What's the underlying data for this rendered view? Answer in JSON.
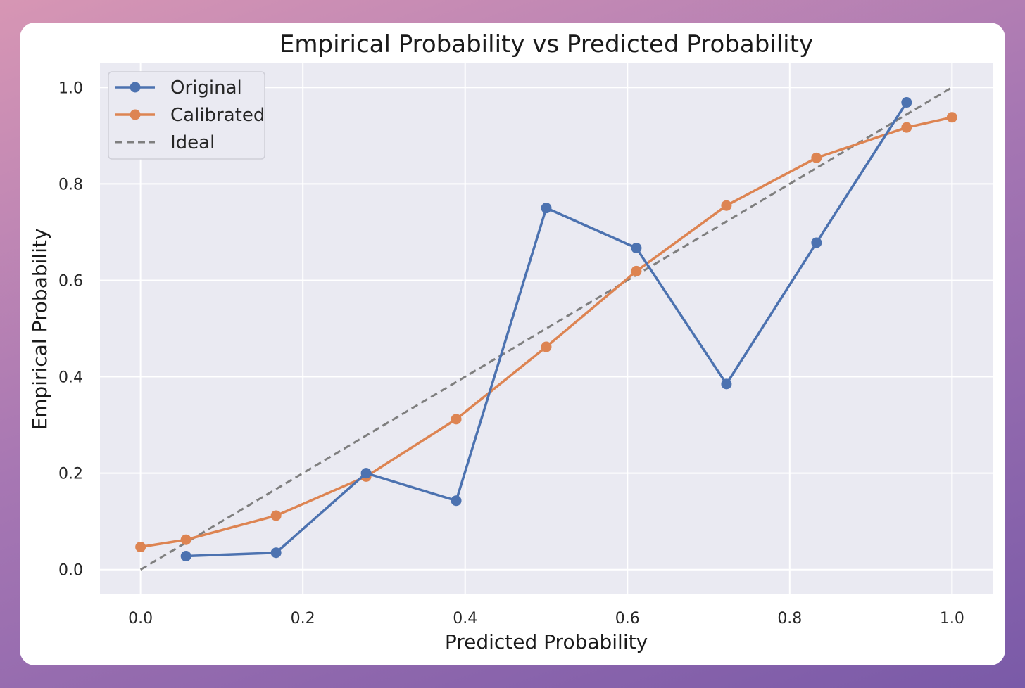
{
  "chart_data": {
    "type": "line",
    "title": "Empirical Probability vs Predicted Probability",
    "xlabel": "Predicted Probability",
    "ylabel": "Empirical Probability",
    "xlim": [
      -0.05,
      1.05
    ],
    "ylim": [
      -0.05,
      1.05
    ],
    "xticks": [
      0.0,
      0.2,
      0.4,
      0.6,
      0.8,
      1.0
    ],
    "yticks": [
      0.0,
      0.2,
      0.4,
      0.6,
      0.8,
      1.0
    ],
    "xtick_labels": [
      "0.0",
      "0.2",
      "0.4",
      "0.6",
      "0.8",
      "1.0"
    ],
    "ytick_labels": [
      "0.0",
      "0.2",
      "0.4",
      "0.6",
      "0.8",
      "1.0"
    ],
    "grid": true,
    "legend_position": "top-left",
    "series": [
      {
        "name": "Original",
        "color": "#4c72b0",
        "style": "solid",
        "markers": true,
        "x": [
          0.056,
          0.167,
          0.278,
          0.389,
          0.5,
          0.611,
          0.722,
          0.833,
          0.944
        ],
        "y": [
          0.028,
          0.035,
          0.2,
          0.143,
          0.75,
          0.667,
          0.385,
          0.678,
          0.969
        ]
      },
      {
        "name": "Calibrated",
        "color": "#dd8452",
        "style": "solid",
        "markers": true,
        "x": [
          0.0,
          0.056,
          0.167,
          0.278,
          0.389,
          0.5,
          0.611,
          0.722,
          0.833,
          0.944,
          1.0
        ],
        "y": [
          0.047,
          0.062,
          0.112,
          0.193,
          0.312,
          0.462,
          0.619,
          0.755,
          0.854,
          0.917,
          0.938
        ]
      },
      {
        "name": "Ideal",
        "color": "#7f7f7f",
        "style": "dashed",
        "markers": false,
        "x": [
          0.0,
          1.0
        ],
        "y": [
          0.0,
          1.0
        ]
      }
    ]
  }
}
